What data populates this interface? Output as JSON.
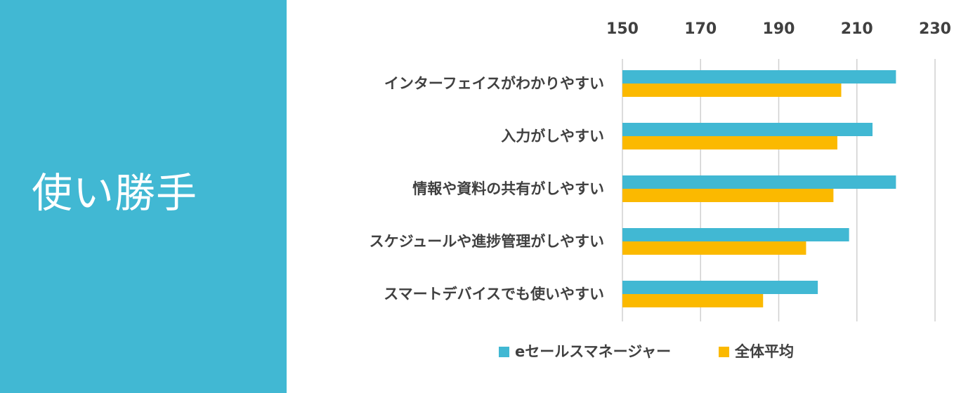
{
  "panel": {
    "title": "使い勝手",
    "color": "#41b8d3"
  },
  "chart_data": {
    "type": "bar",
    "orientation": "horizontal",
    "categories": [
      "インターフェイスがわかりやすい",
      "入力がしやすい",
      "情報や資料の共有がしやすい",
      "スケジュールや進捗管理がしやすい",
      "スマートデバイスでも使いやすい"
    ],
    "series": [
      {
        "name": "eセールスマネージャー",
        "color": "#41b8d3",
        "values": [
          220,
          214,
          220,
          208,
          200
        ]
      },
      {
        "name": "全体平均",
        "color": "#fbb900",
        "values": [
          206,
          205,
          204,
          197,
          186
        ]
      }
    ],
    "xlim": [
      150,
      230
    ],
    "xticks": [
      150,
      170,
      190,
      210,
      230
    ],
    "xaxis_position": "top",
    "grid": true,
    "legend": "bottom"
  }
}
